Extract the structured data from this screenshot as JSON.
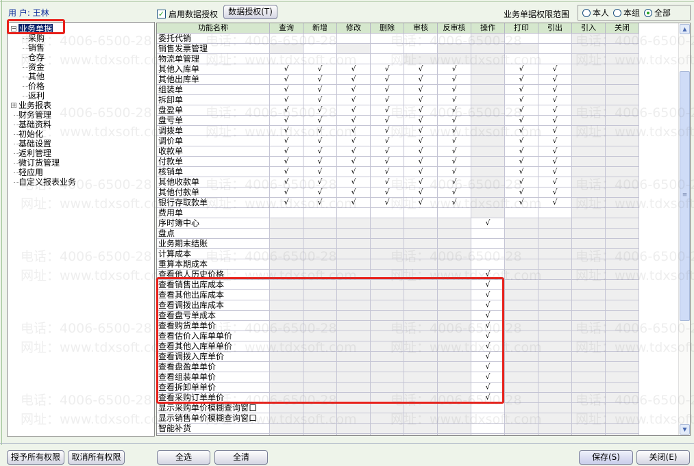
{
  "user_label": "用 户: 王林",
  "tree": {
    "items": [
      {
        "label": "业务单据",
        "level": 0,
        "expander": "minus",
        "selected": true
      },
      {
        "label": "采购",
        "level": 1
      },
      {
        "label": "销售",
        "level": 1
      },
      {
        "label": "仓存",
        "level": 1
      },
      {
        "label": "资金",
        "level": 1
      },
      {
        "label": "其他",
        "level": 1
      },
      {
        "label": "价格",
        "level": 1
      },
      {
        "label": "返利",
        "level": 1
      },
      {
        "label": "业务报表",
        "level": 0,
        "expander": "plus"
      },
      {
        "label": "财务管理",
        "level": 0
      },
      {
        "label": "基础资料",
        "level": 0
      },
      {
        "label": "初始化",
        "level": 0
      },
      {
        "label": "基础设置",
        "level": 0
      },
      {
        "label": "返利管理",
        "level": 0
      },
      {
        "label": "微订货管理",
        "level": 0
      },
      {
        "label": "轻应用",
        "level": 0
      },
      {
        "label": "自定义报表业务",
        "level": 0
      }
    ]
  },
  "toolbar": {
    "enable_label": "启用数据授权",
    "enable_checked": true,
    "data_auth_button": "数据授权(T)",
    "scope_label": "业务单据权限范围",
    "scope_options": [
      {
        "label": "本人",
        "selected": false
      },
      {
        "label": "本组",
        "selected": false
      },
      {
        "label": "全部",
        "selected": true
      }
    ]
  },
  "grid": {
    "columns": [
      "功能名称",
      "查询",
      "新增",
      "修改",
      "删除",
      "审核",
      "反审核",
      "操作",
      "打印",
      "引出",
      "引入",
      "关闭"
    ],
    "check_mark": "√",
    "legend": "c = checked, w = enabled unchecked, g = disabled",
    "rows": [
      {
        "name": "委托代销",
        "cells": "wwwwwwgwwgg"
      },
      {
        "name": "销售发票管理",
        "cells": "gwgwwgggwgg"
      },
      {
        "name": "物流单管理",
        "cells": "wwwwggg wwgg"
      },
      {
        "name": "其他入库单",
        "cells": "ccccccgccgg"
      },
      {
        "name": "其他出库单",
        "cells": "ccccccgccgg"
      },
      {
        "name": "组装单",
        "cells": "ccccccgccgg"
      },
      {
        "name": "拆卸单",
        "cells": "ccccccgccgg"
      },
      {
        "name": "盘盈单",
        "cells": "ccccccgccgg"
      },
      {
        "name": "盘亏单",
        "cells": "ccccccgccgg"
      },
      {
        "name": "调拨单",
        "cells": "ccccccgccgg"
      },
      {
        "name": "调价单",
        "cells": "ccccccgccgg"
      },
      {
        "name": "收款单",
        "cells": "ccccccgccgg"
      },
      {
        "name": "付款单",
        "cells": "ccccccgccgg"
      },
      {
        "name": "核销单",
        "cells": "ccccccgccgg"
      },
      {
        "name": "其他收款单",
        "cells": "ccccccgccgg"
      },
      {
        "name": "其他付款单",
        "cells": "ccccccgccgg"
      },
      {
        "name": "银行存取款单",
        "cells": "ccccccgccgg"
      },
      {
        "name": "费用单",
        "cells": "wwwwwwgwwgg"
      },
      {
        "name": "序时簿中心",
        "cells": "ggggggcgggg"
      },
      {
        "name": "盘点",
        "cells": "ggggggwgggg"
      },
      {
        "name": "业务期末结账",
        "cells": "ggggggwgggg"
      },
      {
        "name": "计算成本",
        "cells": "ggggggwgggg"
      },
      {
        "name": "重算本期成本",
        "cells": "ggggggwgggg"
      },
      {
        "name": "查看他人历史价格",
        "cells": "ggggggcgggg"
      },
      {
        "name": "查看销售出库成本",
        "cells": "ggggggcgggg"
      },
      {
        "name": "查看其他出库成本",
        "cells": "ggggggcgggg"
      },
      {
        "name": "查看调拨出库成本",
        "cells": "ggggggcgggg"
      },
      {
        "name": "查看盘亏单成本",
        "cells": "ggggggcgggg"
      },
      {
        "name": "查看购货单单价",
        "cells": "ggggggcgggg"
      },
      {
        "name": "查看估价入库单单价",
        "cells": "ggggggcgggg"
      },
      {
        "name": "查看其他入库单单价",
        "cells": "ggggggcgggg"
      },
      {
        "name": "查看调拨入库单价",
        "cells": "ggggggcgggg"
      },
      {
        "name": "查看盘盈单单价",
        "cells": "ggggggcgggg"
      },
      {
        "name": "查看组装单单价",
        "cells": "ggggggcgggg"
      },
      {
        "name": "查看拆卸单单价",
        "cells": "ggggggcgggg"
      },
      {
        "name": "查看采购订单单价",
        "cells": "ggggggcgggg"
      },
      {
        "name": "显示采购单价模糊查询窗口",
        "cells": "ggggggwgggg"
      },
      {
        "name": "显示销售单价模糊查询窗口",
        "cells": "ggggggwgggg"
      },
      {
        "name": "智能补货",
        "cells": "ggggggwgggg"
      },
      {
        "name": "",
        "cells": "ggggggwgggg"
      }
    ]
  },
  "watermark": {
    "phone": "电话：4006-6500-28",
    "site": "网址：www.tdxsoft.com"
  },
  "footer": {
    "grant_all": "授予所有权限",
    "revoke_all": "取消所有权限",
    "select_all": "全选",
    "clear_all": "全清",
    "save": "保存(S)",
    "close": "关闭(E)"
  },
  "colors": {
    "highlight_box": "#e8211b",
    "header_bg": "#d5e7cd",
    "disabled_cell": "#efefef",
    "selection": "#0a246a"
  }
}
